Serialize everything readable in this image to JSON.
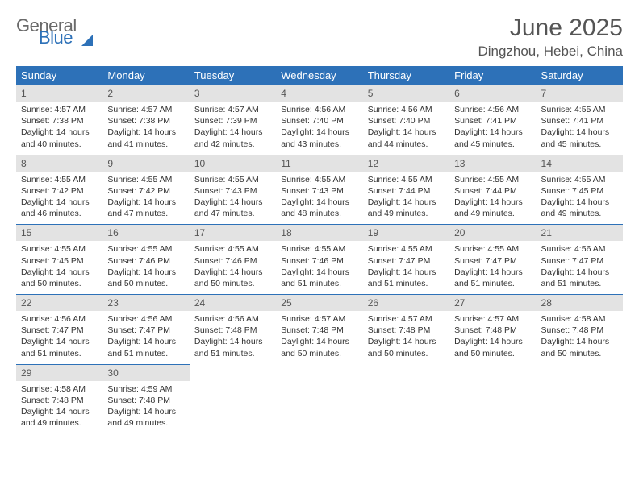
{
  "logo": {
    "line1": "General",
    "line2": "Blue"
  },
  "header": {
    "month_title": "June 2025",
    "location": "Dingzhou, Hebei, China"
  },
  "calendar": {
    "weekday_bg": "#2d71b8",
    "weekday_fg": "#ffffff",
    "daynum_bg": "#e3e3e3",
    "text_color": "#333333",
    "columns": [
      "Sunday",
      "Monday",
      "Tuesday",
      "Wednesday",
      "Thursday",
      "Friday",
      "Saturday"
    ],
    "weeks": [
      [
        {
          "day": "1",
          "sunrise": "Sunrise: 4:57 AM",
          "sunset": "Sunset: 7:38 PM",
          "daylight": "Daylight: 14 hours and 40 minutes."
        },
        {
          "day": "2",
          "sunrise": "Sunrise: 4:57 AM",
          "sunset": "Sunset: 7:38 PM",
          "daylight": "Daylight: 14 hours and 41 minutes."
        },
        {
          "day": "3",
          "sunrise": "Sunrise: 4:57 AM",
          "sunset": "Sunset: 7:39 PM",
          "daylight": "Daylight: 14 hours and 42 minutes."
        },
        {
          "day": "4",
          "sunrise": "Sunrise: 4:56 AM",
          "sunset": "Sunset: 7:40 PM",
          "daylight": "Daylight: 14 hours and 43 minutes."
        },
        {
          "day": "5",
          "sunrise": "Sunrise: 4:56 AM",
          "sunset": "Sunset: 7:40 PM",
          "daylight": "Daylight: 14 hours and 44 minutes."
        },
        {
          "day": "6",
          "sunrise": "Sunrise: 4:56 AM",
          "sunset": "Sunset: 7:41 PM",
          "daylight": "Daylight: 14 hours and 45 minutes."
        },
        {
          "day": "7",
          "sunrise": "Sunrise: 4:55 AM",
          "sunset": "Sunset: 7:41 PM",
          "daylight": "Daylight: 14 hours and 45 minutes."
        }
      ],
      [
        {
          "day": "8",
          "sunrise": "Sunrise: 4:55 AM",
          "sunset": "Sunset: 7:42 PM",
          "daylight": "Daylight: 14 hours and 46 minutes."
        },
        {
          "day": "9",
          "sunrise": "Sunrise: 4:55 AM",
          "sunset": "Sunset: 7:42 PM",
          "daylight": "Daylight: 14 hours and 47 minutes."
        },
        {
          "day": "10",
          "sunrise": "Sunrise: 4:55 AM",
          "sunset": "Sunset: 7:43 PM",
          "daylight": "Daylight: 14 hours and 47 minutes."
        },
        {
          "day": "11",
          "sunrise": "Sunrise: 4:55 AM",
          "sunset": "Sunset: 7:43 PM",
          "daylight": "Daylight: 14 hours and 48 minutes."
        },
        {
          "day": "12",
          "sunrise": "Sunrise: 4:55 AM",
          "sunset": "Sunset: 7:44 PM",
          "daylight": "Daylight: 14 hours and 49 minutes."
        },
        {
          "day": "13",
          "sunrise": "Sunrise: 4:55 AM",
          "sunset": "Sunset: 7:44 PM",
          "daylight": "Daylight: 14 hours and 49 minutes."
        },
        {
          "day": "14",
          "sunrise": "Sunrise: 4:55 AM",
          "sunset": "Sunset: 7:45 PM",
          "daylight": "Daylight: 14 hours and 49 minutes."
        }
      ],
      [
        {
          "day": "15",
          "sunrise": "Sunrise: 4:55 AM",
          "sunset": "Sunset: 7:45 PM",
          "daylight": "Daylight: 14 hours and 50 minutes."
        },
        {
          "day": "16",
          "sunrise": "Sunrise: 4:55 AM",
          "sunset": "Sunset: 7:46 PM",
          "daylight": "Daylight: 14 hours and 50 minutes."
        },
        {
          "day": "17",
          "sunrise": "Sunrise: 4:55 AM",
          "sunset": "Sunset: 7:46 PM",
          "daylight": "Daylight: 14 hours and 50 minutes."
        },
        {
          "day": "18",
          "sunrise": "Sunrise: 4:55 AM",
          "sunset": "Sunset: 7:46 PM",
          "daylight": "Daylight: 14 hours and 51 minutes."
        },
        {
          "day": "19",
          "sunrise": "Sunrise: 4:55 AM",
          "sunset": "Sunset: 7:47 PM",
          "daylight": "Daylight: 14 hours and 51 minutes."
        },
        {
          "day": "20",
          "sunrise": "Sunrise: 4:55 AM",
          "sunset": "Sunset: 7:47 PM",
          "daylight": "Daylight: 14 hours and 51 minutes."
        },
        {
          "day": "21",
          "sunrise": "Sunrise: 4:56 AM",
          "sunset": "Sunset: 7:47 PM",
          "daylight": "Daylight: 14 hours and 51 minutes."
        }
      ],
      [
        {
          "day": "22",
          "sunrise": "Sunrise: 4:56 AM",
          "sunset": "Sunset: 7:47 PM",
          "daylight": "Daylight: 14 hours and 51 minutes."
        },
        {
          "day": "23",
          "sunrise": "Sunrise: 4:56 AM",
          "sunset": "Sunset: 7:47 PM",
          "daylight": "Daylight: 14 hours and 51 minutes."
        },
        {
          "day": "24",
          "sunrise": "Sunrise: 4:56 AM",
          "sunset": "Sunset: 7:48 PM",
          "daylight": "Daylight: 14 hours and 51 minutes."
        },
        {
          "day": "25",
          "sunrise": "Sunrise: 4:57 AM",
          "sunset": "Sunset: 7:48 PM",
          "daylight": "Daylight: 14 hours and 50 minutes."
        },
        {
          "day": "26",
          "sunrise": "Sunrise: 4:57 AM",
          "sunset": "Sunset: 7:48 PM",
          "daylight": "Daylight: 14 hours and 50 minutes."
        },
        {
          "day": "27",
          "sunrise": "Sunrise: 4:57 AM",
          "sunset": "Sunset: 7:48 PM",
          "daylight": "Daylight: 14 hours and 50 minutes."
        },
        {
          "day": "28",
          "sunrise": "Sunrise: 4:58 AM",
          "sunset": "Sunset: 7:48 PM",
          "daylight": "Daylight: 14 hours and 50 minutes."
        }
      ],
      [
        {
          "day": "29",
          "sunrise": "Sunrise: 4:58 AM",
          "sunset": "Sunset: 7:48 PM",
          "daylight": "Daylight: 14 hours and 49 minutes."
        },
        {
          "day": "30",
          "sunrise": "Sunrise: 4:59 AM",
          "sunset": "Sunset: 7:48 PM",
          "daylight": "Daylight: 14 hours and 49 minutes."
        },
        null,
        null,
        null,
        null,
        null
      ]
    ]
  }
}
